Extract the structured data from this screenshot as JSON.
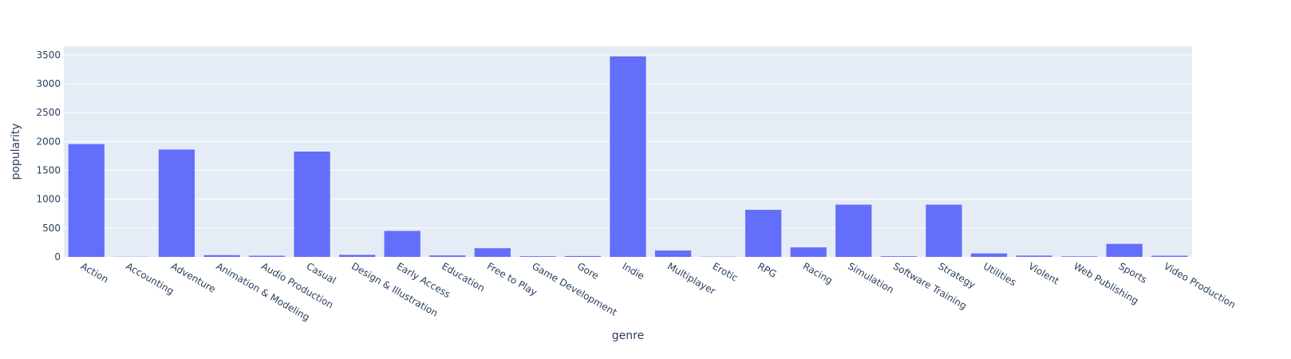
{
  "chart_data": {
    "type": "bar",
    "title": "",
    "xlabel": "genre",
    "ylabel": "popularity",
    "ylim": [
      0,
      3650
    ],
    "yticks": [
      0,
      500,
      1000,
      1500,
      2000,
      2500,
      3000,
      3500
    ],
    "grid": true,
    "legend": "none",
    "colors": {
      "bar": "#636efa",
      "plot_bg": "#e5ecf6",
      "grid": "#ffffff",
      "text": "#2a3f5f"
    },
    "categories": [
      "Action",
      "Accounting",
      "Adventure",
      "Animation & Modeling",
      "Audio Production",
      "Casual",
      "Design & Illustration",
      "Early Access",
      "Education",
      "Free to Play",
      "Game Development",
      "Gore",
      "Indie",
      "Multiplayer",
      "Erotic",
      "RPG",
      "Racing",
      "Simulation",
      "Software Training",
      "Strategy",
      "Utilities",
      "Violent",
      "Web Publishing",
      "Sports",
      "Video Production"
    ],
    "values": [
      1955,
      3,
      1860,
      30,
      20,
      1825,
      35,
      450,
      25,
      150,
      12,
      15,
      3475,
      110,
      4,
      815,
      165,
      905,
      12,
      905,
      60,
      22,
      10,
      225,
      20
    ]
  }
}
